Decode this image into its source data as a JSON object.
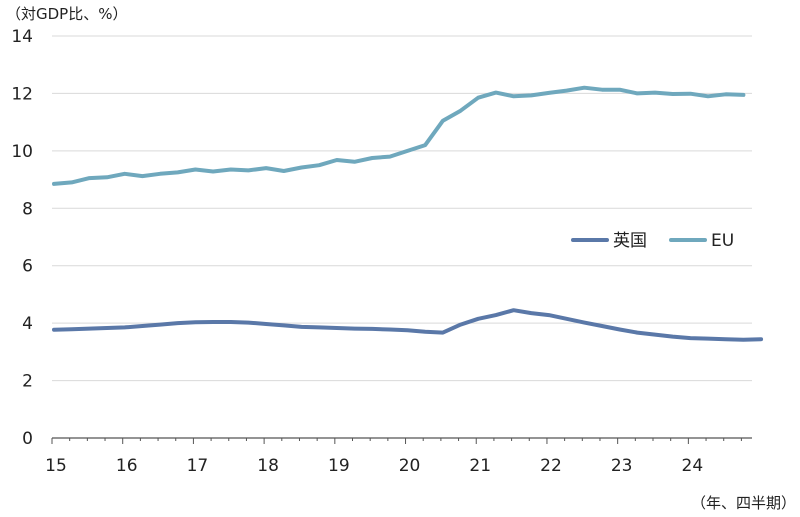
{
  "chart_data": {
    "type": "line",
    "ylabel": "（対GDP比、%）",
    "xlabel": "（年、四半期）",
    "ylim": [
      0,
      14
    ],
    "yticks": [
      "0",
      "2",
      "4",
      "6",
      "8",
      "10",
      "12",
      "14"
    ],
    "xticks": [
      "15",
      "16",
      "17",
      "18",
      "19",
      "20",
      "21",
      "22",
      "23",
      "24"
    ],
    "grid": true,
    "legend_position": "right-middle",
    "x_start_year": 15,
    "quarters_per_year": 4,
    "series": [
      {
        "name": "英国",
        "color": "#5a78a8",
        "values": [
          3.77,
          3.79,
          3.81,
          3.83,
          3.85,
          3.9,
          3.95,
          4.0,
          4.03,
          4.04,
          4.04,
          4.02,
          3.97,
          3.92,
          3.87,
          3.85,
          3.83,
          3.81,
          3.8,
          3.78,
          3.75,
          3.7,
          3.67,
          3.95,
          4.15,
          4.28,
          4.45,
          4.35,
          4.28,
          4.15,
          4.02,
          3.9,
          3.78,
          3.67,
          3.6,
          3.53,
          3.48,
          3.46,
          3.44,
          3.42,
          3.44
        ]
      },
      {
        "name": "EU",
        "color": "#6fa8bd",
        "values": [
          8.85,
          8.9,
          9.05,
          9.08,
          9.2,
          9.12,
          9.2,
          9.25,
          9.35,
          9.28,
          9.35,
          9.32,
          9.4,
          9.3,
          9.42,
          9.5,
          9.68,
          9.62,
          9.75,
          9.8,
          10.0,
          10.2,
          11.05,
          11.4,
          11.85,
          12.03,
          11.9,
          11.93,
          12.02,
          12.1,
          12.2,
          12.13,
          12.13,
          12.0,
          12.03,
          11.98,
          11.99,
          11.9,
          11.97,
          11.95
        ]
      }
    ]
  }
}
